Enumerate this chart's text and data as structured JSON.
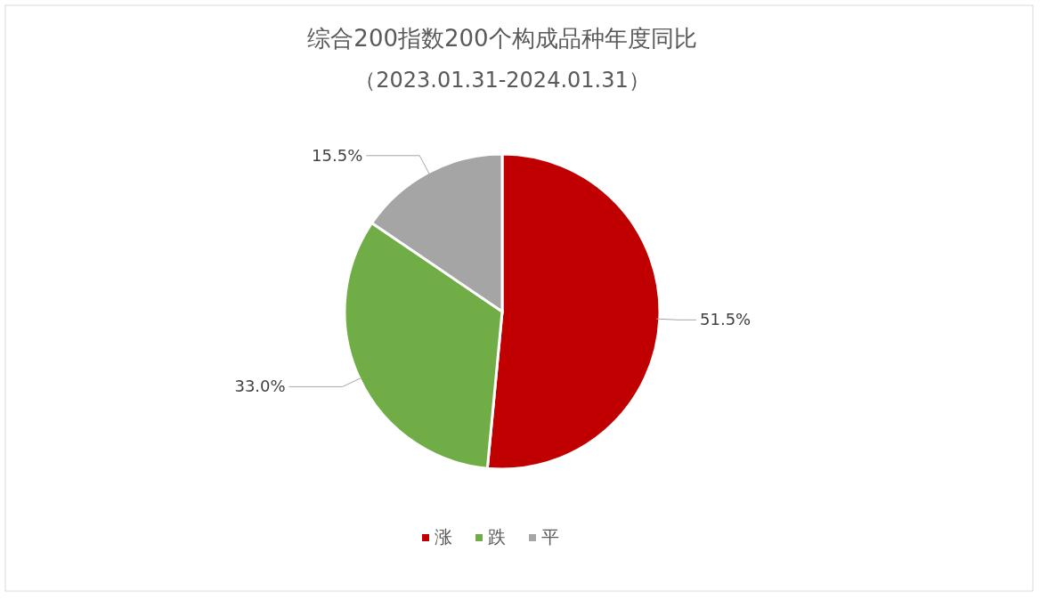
{
  "chart_data": {
    "type": "pie",
    "title": "综合200指数200个构成品种年度同比",
    "subtitle": "（2023.01.31-2024.01.31）",
    "categories": [
      "涨",
      "跌",
      "平"
    ],
    "values": [
      51.5,
      33.0,
      15.5
    ],
    "colors": [
      "#c00000",
      "#70ad47",
      "#a5a5a5"
    ],
    "value_labels": [
      "51.5%",
      "33.0%",
      "15.5%"
    ],
    "legend": "bottom"
  }
}
